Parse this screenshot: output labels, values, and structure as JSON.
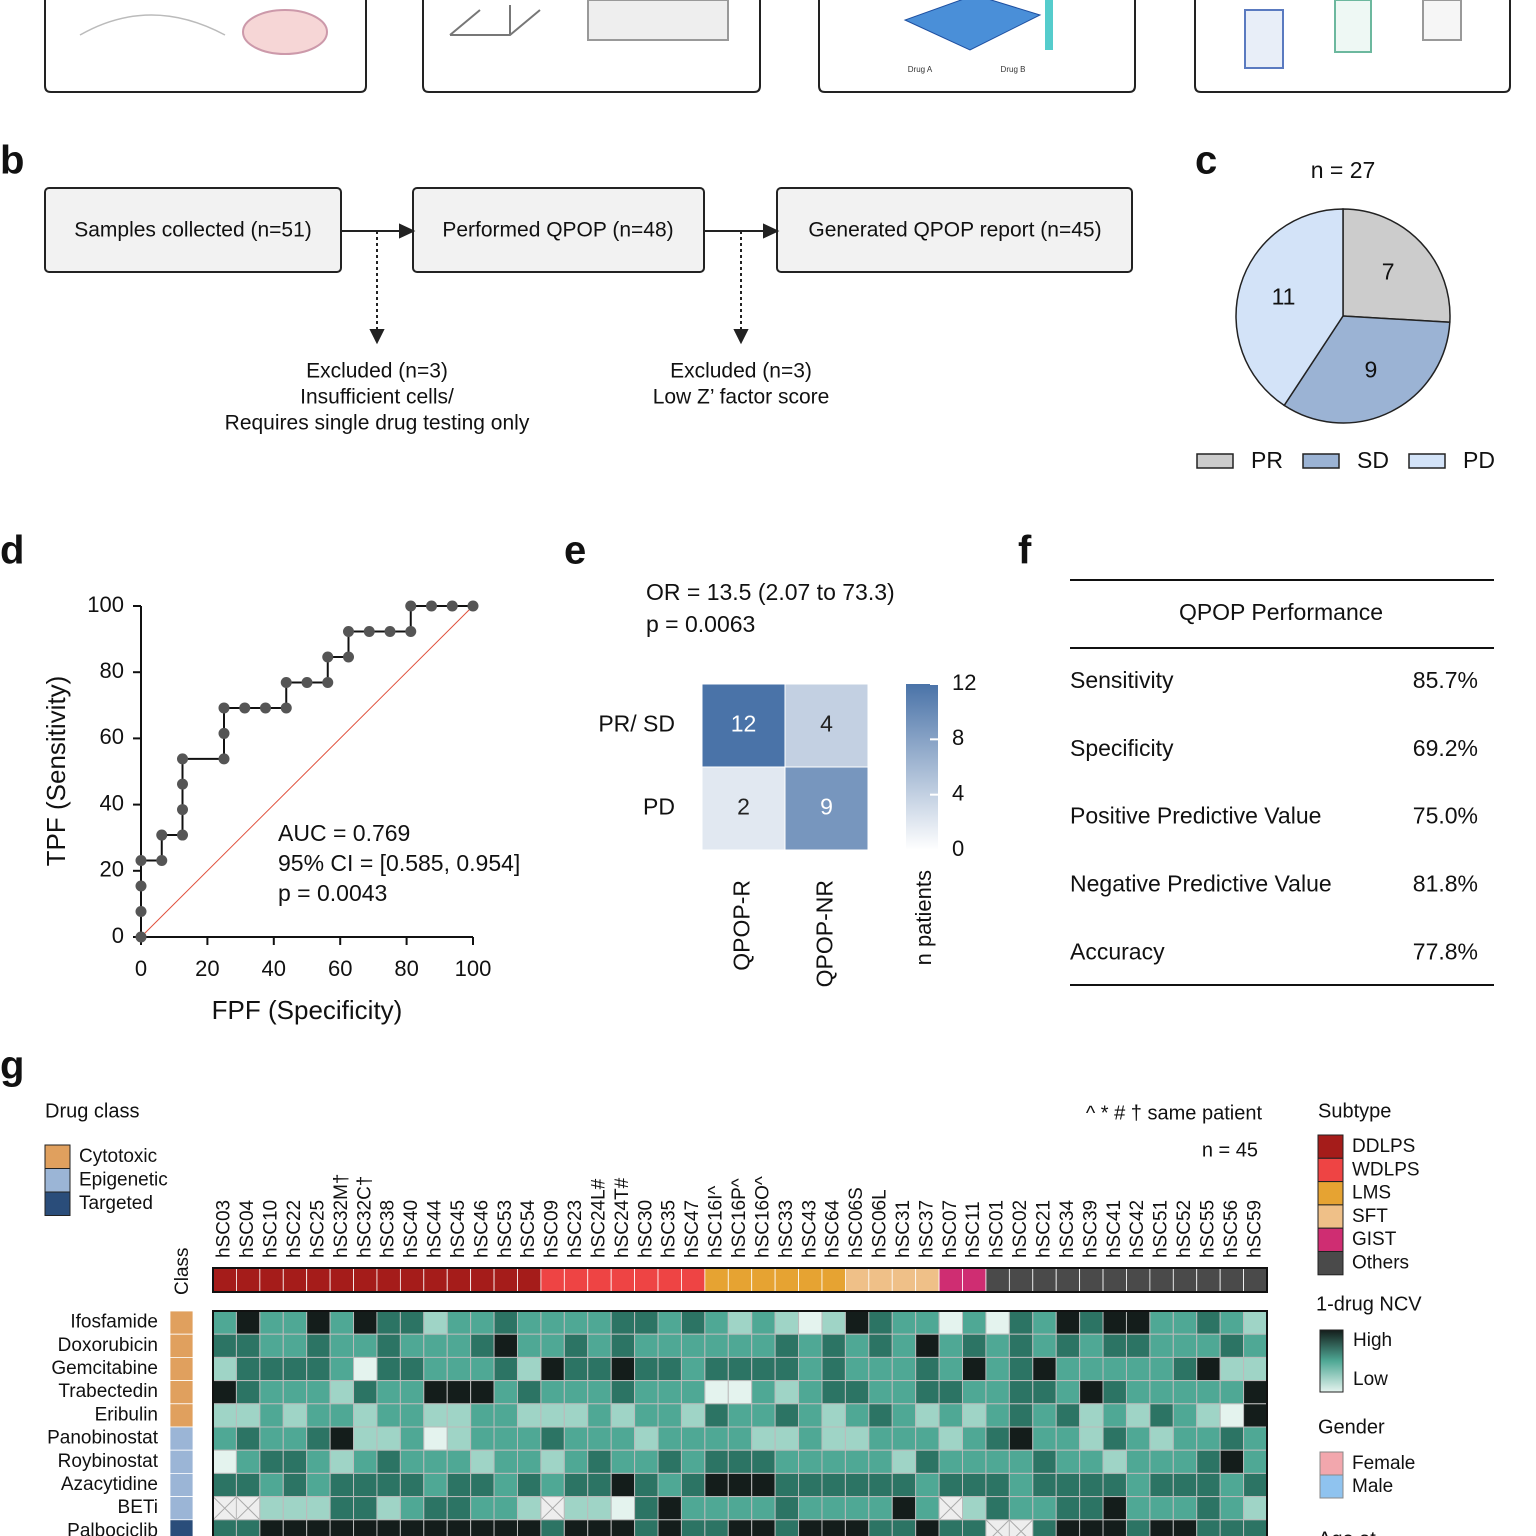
{
  "panel_a": {
    "labels": [
      "Drug A",
      "Drug B"
    ]
  },
  "panel_letters": [
    "b",
    "c",
    "d",
    "e",
    "f",
    "g"
  ],
  "flowchart": {
    "steps": [
      "Samples collected (n=51)",
      "Performed QPOP (n=48)",
      "Generated QPOP report (n=45)"
    ],
    "exclusions": [
      [
        "Excluded (n=3)",
        "Insufficient cells/",
        "Requires single drug testing only"
      ],
      [
        "Excluded (n=3)",
        "Low Z’ factor score"
      ]
    ]
  },
  "chart_data": [
    {
      "type": "pie",
      "title": "n = 27",
      "categories": [
        "PR",
        "SD",
        "PD"
      ],
      "values": [
        7,
        9,
        11
      ],
      "colors": [
        "#cccccc",
        "#9bb3d4",
        "#d3e3f8"
      ],
      "legend": "bottom"
    },
    {
      "type": "line",
      "xlabel": "FPF (Specificity)",
      "ylabel": "TPF (Sensitivity)",
      "x": [
        0,
        0,
        0,
        0,
        6.25,
        6.25,
        12.5,
        12.5,
        12.5,
        12.5,
        25,
        25,
        25,
        31.25,
        37.5,
        43.75,
        43.75,
        50,
        56.25,
        56.25,
        62.5,
        62.5,
        68.75,
        75,
        81.25,
        81.25,
        87.5,
        93.75,
        100
      ],
      "values": [
        0,
        7.7,
        15.4,
        23.1,
        23.1,
        30.8,
        30.8,
        38.5,
        46.2,
        53.8,
        53.8,
        61.5,
        69.2,
        69.2,
        69.2,
        69.2,
        76.9,
        76.9,
        76.9,
        84.6,
        84.6,
        92.3,
        92.3,
        92.3,
        92.3,
        100,
        100,
        100,
        100
      ],
      "color": "#555555",
      "xlim": [
        0,
        100
      ],
      "ylim": [
        0,
        100
      ],
      "xticks": [
        0,
        20,
        40,
        60,
        80,
        100
      ],
      "yticks": [
        0,
        20,
        40,
        60,
        80,
        100
      ],
      "annotations": [
        "AUC = 0.769",
        "95% CI = [0.585, 0.954]",
        "p = 0.0043"
      ]
    },
    {
      "type": "heatmap",
      "annotations": [
        "OR = 13.5 (2.07 to 73.3)",
        "p = 0.0063"
      ],
      "rows": [
        "PR/ SD",
        "PD"
      ],
      "columns": [
        "QPOP-R",
        "QPOP-NR"
      ],
      "values": [
        [
          12,
          4
        ],
        [
          2,
          9
        ]
      ],
      "colorbar": {
        "label": "n patients",
        "lim": [
          0,
          12
        ],
        "ticks": [
          0,
          4,
          8,
          12
        ],
        "colors": [
          "#ffffff",
          "#4a73a8"
        ]
      }
    },
    {
      "type": "heatmap",
      "note": "^ * # † same patient",
      "n_label": "n = 45",
      "class_label": "Class",
      "columns": [
        "hSC03",
        "hSC04",
        "hSC10",
        "hSC22",
        "hSC25",
        "hSC32M†",
        "hSC32C†",
        "hSC38",
        "hSC40",
        "hSC44",
        "hSC45",
        "hSC46",
        "hSC53",
        "hSC54",
        "hSC09",
        "hSC23",
        "hSC24L#",
        "hSC24T#",
        "hSC30",
        "hSC35",
        "hSC47",
        "hSC16I^",
        "hSC16P^",
        "hSC16O^",
        "hSC33",
        "hSC43",
        "hSC64",
        "hSC06S",
        "hSC06L",
        "hSC31",
        "hSC37",
        "hSC07",
        "hSC11",
        "hSC01",
        "hSC02",
        "hSC21",
        "hSC34",
        "hSC39",
        "hSC41",
        "hSC42",
        "hSC51",
        "hSC52",
        "hSC55",
        "hSC56",
        "hSC59"
      ],
      "column_subtype": [
        "DDLPS",
        "DDLPS",
        "DDLPS",
        "DDLPS",
        "DDLPS",
        "DDLPS",
        "DDLPS",
        "DDLPS",
        "DDLPS",
        "DDLPS",
        "DDLPS",
        "DDLPS",
        "DDLPS",
        "DDLPS",
        "WDLPS",
        "WDLPS",
        "WDLPS",
        "WDLPS",
        "WDLPS",
        "WDLPS",
        "WDLPS",
        "LMS",
        "LMS",
        "LMS",
        "LMS",
        "LMS",
        "LMS",
        "SFT",
        "SFT",
        "SFT",
        "SFT",
        "GIST",
        "GIST",
        "Others",
        "Others",
        "Others",
        "Others",
        "Others",
        "Others",
        "Others",
        "Others",
        "Others",
        "Others",
        "Others",
        "Others"
      ],
      "rows": [
        "Ifosfamide",
        "Doxorubicin",
        "Gemcitabine",
        "Trabectedin",
        "Eribulin",
        "Panobinostat",
        "Roybinostat",
        "Azacytidine",
        "BETi",
        "Palbociclib"
      ],
      "row_class": [
        "Cytotoxic",
        "Cytotoxic",
        "Cytotoxic",
        "Cytotoxic",
        "Cytotoxic",
        "Epigenetic",
        "Epigenetic",
        "Epigenetic",
        "Epigenetic",
        "Targeted"
      ],
      "values": [
        [
          2,
          4,
          2,
          2,
          4,
          2,
          4,
          3,
          3,
          1,
          2,
          2,
          3,
          2,
          2,
          2,
          2,
          3,
          3,
          2,
          3,
          2,
          1,
          2,
          1,
          0,
          1,
          4,
          3,
          2,
          2,
          0,
          2,
          0,
          3,
          2,
          4,
          3,
          4,
          4,
          2,
          2,
          3,
          2,
          1
        ],
        [
          3,
          3,
          2,
          2,
          3,
          2,
          2,
          3,
          2,
          2,
          2,
          3,
          4,
          2,
          2,
          3,
          2,
          3,
          2,
          2,
          2,
          2,
          2,
          2,
          3,
          2,
          3,
          2,
          3,
          2,
          4,
          2,
          3,
          2,
          3,
          2,
          3,
          2,
          3,
          3,
          2,
          2,
          2,
          3,
          2
        ],
        [
          1,
          3,
          3,
          3,
          3,
          2,
          0,
          3,
          3,
          2,
          2,
          2,
          3,
          1,
          4,
          3,
          3,
          4,
          3,
          3,
          2,
          3,
          3,
          3,
          3,
          2,
          3,
          2,
          2,
          2,
          3,
          2,
          4,
          2,
          3,
          4,
          2,
          2,
          2,
          2,
          2,
          3,
          4,
          1,
          1
        ],
        [
          4,
          3,
          2,
          2,
          2,
          1,
          3,
          2,
          2,
          4,
          4,
          4,
          2,
          3,
          2,
          2,
          2,
          3,
          2,
          2,
          2,
          0,
          0,
          2,
          1,
          2,
          3,
          3,
          2,
          2,
          3,
          3,
          2,
          2,
          3,
          3,
          2,
          4,
          3,
          2,
          2,
          2,
          2,
          2,
          4
        ],
        [
          1,
          1,
          2,
          1,
          2,
          2,
          1,
          2,
          2,
          1,
          1,
          2,
          2,
          1,
          1,
          1,
          2,
          1,
          2,
          2,
          1,
          3,
          2,
          2,
          3,
          2,
          1,
          2,
          3,
          2,
          1,
          2,
          1,
          2,
          3,
          2,
          3,
          1,
          2,
          1,
          3,
          2,
          1,
          0,
          4
        ],
        [
          2,
          3,
          2,
          2,
          3,
          4,
          1,
          1,
          2,
          0,
          1,
          2,
          2,
          2,
          3,
          2,
          2,
          2,
          1,
          2,
          2,
          2,
          2,
          1,
          1,
          2,
          1,
          1,
          2,
          2,
          2,
          1,
          2,
          3,
          4,
          2,
          2,
          1,
          3,
          2,
          1,
          2,
          2,
          3,
          2
        ],
        [
          0,
          2,
          3,
          3,
          2,
          1,
          2,
          3,
          2,
          2,
          2,
          1,
          2,
          2,
          1,
          2,
          3,
          2,
          2,
          3,
          2,
          3,
          3,
          3,
          2,
          2,
          2,
          2,
          2,
          1,
          3,
          2,
          2,
          2,
          2,
          3,
          2,
          2,
          1,
          2,
          2,
          2,
          3,
          4,
          2
        ],
        [
          3,
          3,
          2,
          3,
          2,
          3,
          3,
          3,
          3,
          2,
          3,
          3,
          2,
          3,
          2,
          3,
          3,
          4,
          3,
          2,
          3,
          4,
          4,
          4,
          3,
          3,
          3,
          3,
          3,
          3,
          2,
          3,
          3,
          3,
          2,
          3,
          3,
          3,
          3,
          2,
          3,
          3,
          3,
          2,
          3
        ],
        [
          null,
          null,
          1,
          1,
          1,
          3,
          3,
          1,
          2,
          3,
          3,
          2,
          2,
          1,
          null,
          1,
          1,
          0,
          3,
          4,
          2,
          2,
          2,
          2,
          3,
          2,
          2,
          2,
          2,
          4,
          2,
          null,
          1,
          3,
          2,
          2,
          3,
          3,
          4,
          2,
          2,
          2,
          3,
          2,
          1
        ],
        [
          3,
          3,
          4,
          4,
          4,
          4,
          4,
          4,
          4,
          4,
          4,
          4,
          4,
          4,
          3,
          4,
          4,
          4,
          3,
          4,
          3,
          3,
          4,
          4,
          3,
          4,
          4,
          4,
          3,
          3,
          4,
          3,
          3,
          null,
          null,
          3,
          4,
          4,
          4,
          3,
          4,
          4,
          3,
          3,
          3
        ]
      ],
      "colors": [
        "#e4f3ee",
        "#9fd4c6",
        "#4fa895",
        "#2c7464",
        "#141d1b"
      ],
      "legends": {
        "drug_class": {
          "title": "Drug class",
          "items": [
            "Cytotoxic",
            "Epigenetic",
            "Targeted"
          ],
          "colors": [
            "#e0a05e",
            "#9bb5d6",
            "#2a4d7a"
          ]
        },
        "subtype": {
          "title": "Subtype",
          "items": [
            "DDLPS",
            "WDLPS",
            "LMS",
            "SFT",
            "GIST",
            "Others"
          ],
          "colors": [
            "#a51c1a",
            "#ee4444",
            "#e6a332",
            "#efc088",
            "#cf2d72",
            "#4a4a4a"
          ]
        },
        "ncv": {
          "title": "1-drug NCV",
          "high": "High",
          "low": "Low"
        },
        "gender": {
          "title": "Gender",
          "items": [
            "Female",
            "Male"
          ],
          "colors": [
            "#f2a7ad",
            "#8fc3ef"
          ]
        },
        "age": {
          "title": "Age at"
        }
      }
    }
  ],
  "table": {
    "title": "QPOP Performance",
    "rows": [
      [
        "Sensitivity",
        "85.7%"
      ],
      [
        "Specificity",
        "69.2%"
      ],
      [
        "Positive Predictive Value",
        "75.0%"
      ],
      [
        "Negative Predictive Value",
        "81.8%"
      ],
      [
        "Accuracy",
        "77.8%"
      ]
    ]
  }
}
